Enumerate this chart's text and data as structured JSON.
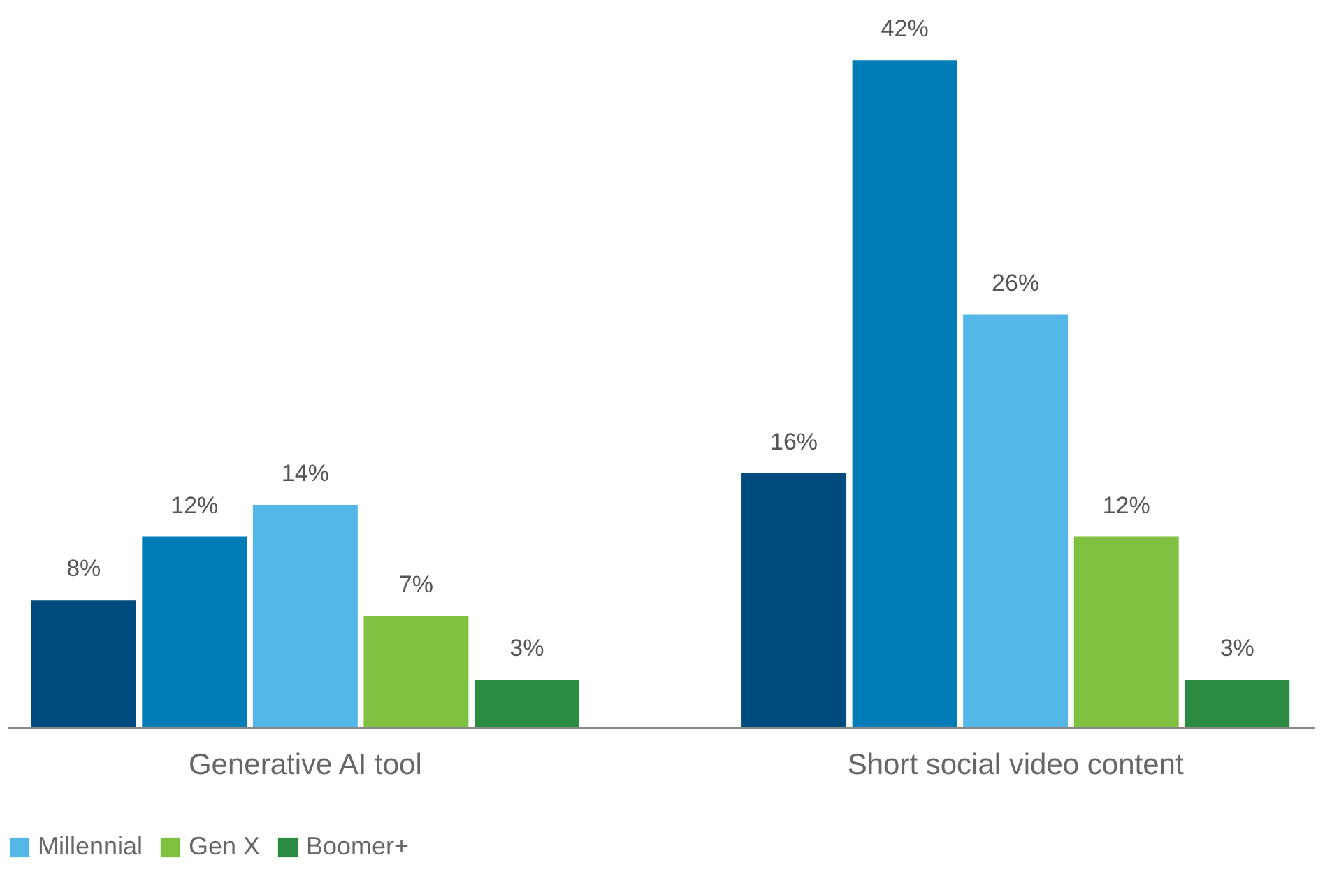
{
  "chart_data": {
    "type": "bar",
    "categories": [
      "Generative AI tool",
      "Short social video content"
    ],
    "series": [
      {
        "color": "#004b7d",
        "values": [
          8,
          16
        ],
        "value_labels": [
          "8%",
          "16%"
        ]
      },
      {
        "color": "#007cb7",
        "values": [
          12,
          42
        ],
        "value_labels": [
          "12%",
          "42%"
        ]
      },
      {
        "name": "Millennial",
        "color": "#55b7e8",
        "values": [
          14,
          26
        ],
        "value_labels": [
          "14%",
          "26%"
        ]
      },
      {
        "name": "Gen X",
        "color": "#80c141",
        "values": [
          7,
          12
        ],
        "value_labels": [
          "7%",
          "12%"
        ]
      },
      {
        "name": "Boomer+",
        "color": "#2a8b41",
        "values": [
          3,
          3
        ],
        "value_labels": [
          "3%",
          "3%"
        ]
      }
    ],
    "legend": "bottom left",
    "grid": false
  }
}
